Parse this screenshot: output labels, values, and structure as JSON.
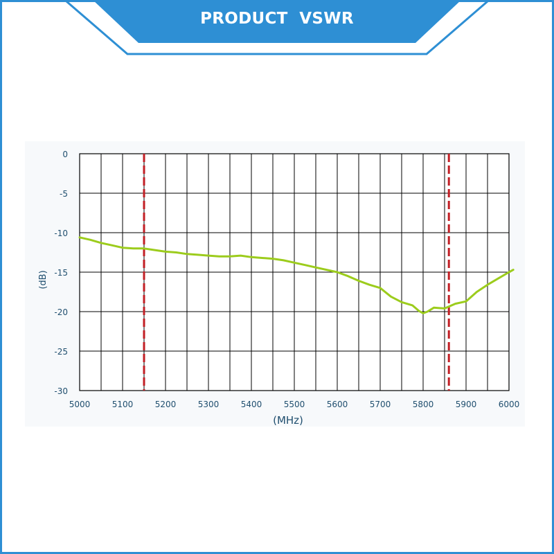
{
  "header": {
    "title": "PRODUCT  VSWR"
  },
  "colors": {
    "header_blue": "#2e8fd4",
    "frame_blue": "#2e8fd4",
    "curve": "#9ccc1c",
    "marker": "#c21f25",
    "axis_text": "#1f4e6e"
  },
  "chart_data": {
    "type": "line",
    "title": "",
    "xlabel": "(MHz)",
    "ylabel": "(dB)",
    "xlim": [
      5000,
      6000
    ],
    "ylim": [
      -30,
      0
    ],
    "x_ticks": [
      5000,
      5100,
      5200,
      5300,
      5400,
      5500,
      5600,
      5700,
      5800,
      5900,
      6000
    ],
    "y_ticks": [
      0,
      -5,
      -10,
      -15,
      -20,
      -25,
      -30
    ],
    "x_tick_labels": [
      "5000",
      "5100",
      "5200",
      "5300",
      "5400",
      "5500",
      "5600",
      "5700",
      "5800",
      "5900",
      "6000"
    ],
    "y_tick_labels": [
      "0",
      "-5",
      "-10",
      "-15",
      "-20",
      "-25",
      "-30"
    ],
    "grid": true,
    "markers": [
      5150,
      5860
    ],
    "series": [
      {
        "x": [
          5000,
          5025,
          5050,
          5075,
          5100,
          5125,
          5150,
          5175,
          5200,
          5225,
          5250,
          5275,
          5300,
          5325,
          5350,
          5375,
          5400,
          5425,
          5450,
          5475,
          5500,
          5525,
          5550,
          5575,
          5600,
          5625,
          5650,
          5675,
          5700,
          5725,
          5750,
          5775,
          5790,
          5800,
          5810,
          5825,
          5850,
          5875,
          5900,
          5925,
          5950,
          5975,
          6000,
          6010
        ],
        "y": [
          -10.6,
          -10.9,
          -11.3,
          -11.6,
          -11.9,
          -12.0,
          -12.0,
          -12.2,
          -12.4,
          -12.5,
          -12.7,
          -12.8,
          -12.9,
          -13.0,
          -13.0,
          -12.9,
          -13.1,
          -13.2,
          -13.3,
          -13.5,
          -13.8,
          -14.1,
          -14.4,
          -14.7,
          -15.0,
          -15.5,
          -16.1,
          -16.6,
          -17.0,
          -18.1,
          -18.8,
          -19.2,
          -19.9,
          -20.2,
          -20.0,
          -19.5,
          -19.6,
          -19.0,
          -18.7,
          -17.5,
          -16.6,
          -15.8,
          -15.0,
          -14.7
        ]
      }
    ]
  }
}
